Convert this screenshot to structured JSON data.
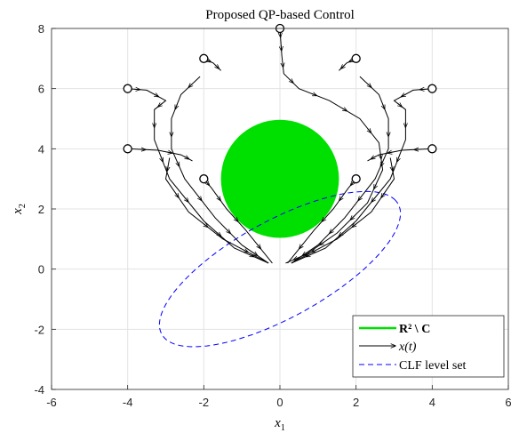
{
  "chart_data": {
    "type": "line",
    "title": "Proposed QP-based Control",
    "xlabel": "x",
    "xlabel_sub": "1",
    "ylabel": "x",
    "ylabel_sub": "2",
    "xlim": [
      -6,
      6
    ],
    "ylim": [
      -4,
      8
    ],
    "xticks": [
      -6,
      -4,
      -2,
      0,
      2,
      4,
      6
    ],
    "yticks": [
      -4,
      -2,
      0,
      2,
      4,
      6,
      8
    ],
    "xtick_labels": [
      "-6",
      "-4",
      "-2",
      "0",
      "2",
      "4",
      "6"
    ],
    "ytick_labels": [
      "-4",
      "-2",
      "0",
      "2",
      "4",
      "6",
      "8"
    ],
    "grid": true,
    "legend_position": "bottom-right",
    "legend": [
      "R² \\ C",
      "x(t)",
      "CLF level set"
    ],
    "colors": {
      "obstacle": "#00e000",
      "trajectory": "#000000",
      "clf": "#0000ff"
    },
    "obstacle": {
      "center": [
        0,
        3
      ],
      "radii": [
        1.55,
        1.55
      ]
    },
    "clf_level_set": {
      "center": [
        0,
        0
      ],
      "semi_major": 3.8,
      "semi_minor": 1.5,
      "angle_deg": 37
    },
    "initial_points": [
      [
        0,
        8
      ],
      [
        -2,
        7
      ],
      [
        2,
        7
      ],
      [
        -4,
        6
      ],
      [
        4,
        6
      ],
      [
        -4,
        4
      ],
      [
        4,
        4
      ],
      [
        -2,
        3
      ],
      [
        2,
        3
      ]
    ],
    "trajectories": [
      [
        [
          0,
          8
        ],
        [
          0.02,
          7.6
        ],
        [
          0.05,
          7.1
        ],
        [
          0.1,
          6.5
        ],
        [
          0.5,
          6.0
        ],
        [
          1.3,
          5.6
        ],
        [
          2.1,
          5.0
        ],
        [
          2.6,
          4.2
        ],
        [
          2.7,
          3.3
        ],
        [
          2.3,
          2.2
        ],
        [
          1.5,
          1.2
        ],
        [
          0.7,
          0.5
        ],
        [
          0.15,
          0.2
        ]
      ],
      [
        [
          -2,
          7
        ],
        [
          -1.75,
          6.85
        ],
        [
          -1.55,
          6.6
        ]
      ],
      [
        [
          -2.1,
          6.4
        ],
        [
          -2.6,
          5.8
        ],
        [
          -2.85,
          5.0
        ],
        [
          -2.85,
          4.0
        ],
        [
          -2.5,
          3.0
        ],
        [
          -1.7,
          1.7
        ],
        [
          -1.0,
          0.8
        ],
        [
          -0.3,
          0.2
        ]
      ],
      [
        [
          2,
          7
        ],
        [
          1.75,
          6.85
        ],
        [
          1.55,
          6.6
        ]
      ],
      [
        [
          2.1,
          6.4
        ],
        [
          2.6,
          5.8
        ],
        [
          2.85,
          5.0
        ],
        [
          2.85,
          4.0
        ],
        [
          2.5,
          3.0
        ],
        [
          1.7,
          1.7
        ],
        [
          1.0,
          0.8
        ],
        [
          0.3,
          0.2
        ]
      ],
      [
        [
          -4,
          6
        ],
        [
          -3.5,
          5.95
        ],
        [
          -3.0,
          5.6
        ],
        [
          -3.3,
          5.3
        ],
        [
          -3.3,
          4.3
        ],
        [
          -2.9,
          3.0
        ],
        [
          -2.0,
          1.6
        ],
        [
          -1.2,
          0.7
        ],
        [
          -0.3,
          0.2
        ]
      ],
      [
        [
          4,
          6
        ],
        [
          3.5,
          5.95
        ],
        [
          3.0,
          5.6
        ],
        [
          3.3,
          5.3
        ],
        [
          3.3,
          4.3
        ],
        [
          2.9,
          3.0
        ],
        [
          2.0,
          1.6
        ],
        [
          1.2,
          0.7
        ],
        [
          0.3,
          0.2
        ]
      ],
      [
        [
          -4,
          4
        ],
        [
          -3.2,
          3.95
        ],
        [
          -2.6,
          3.8
        ],
        [
          -2.3,
          3.6
        ]
      ],
      [
        [
          -2.9,
          3.7
        ],
        [
          -3.0,
          3.0
        ],
        [
          -2.4,
          1.9
        ],
        [
          -1.5,
          1.0
        ],
        [
          -0.3,
          0.2
        ]
      ],
      [
        [
          4,
          4
        ],
        [
          3.2,
          3.95
        ],
        [
          2.6,
          3.8
        ],
        [
          2.3,
          3.6
        ]
      ],
      [
        [
          2.9,
          3.7
        ],
        [
          3.0,
          3.0
        ],
        [
          2.4,
          1.9
        ],
        [
          1.5,
          1.0
        ],
        [
          0.3,
          0.2
        ]
      ],
      [
        [
          -2,
          3
        ],
        [
          -1.8,
          2.7
        ],
        [
          -1.4,
          2.0
        ],
        [
          -0.9,
          1.3
        ],
        [
          -0.2,
          0.2
        ]
      ],
      [
        [
          2,
          3
        ],
        [
          1.8,
          2.7
        ],
        [
          1.4,
          2.0
        ],
        [
          0.9,
          1.3
        ],
        [
          0.2,
          0.2
        ]
      ]
    ]
  }
}
